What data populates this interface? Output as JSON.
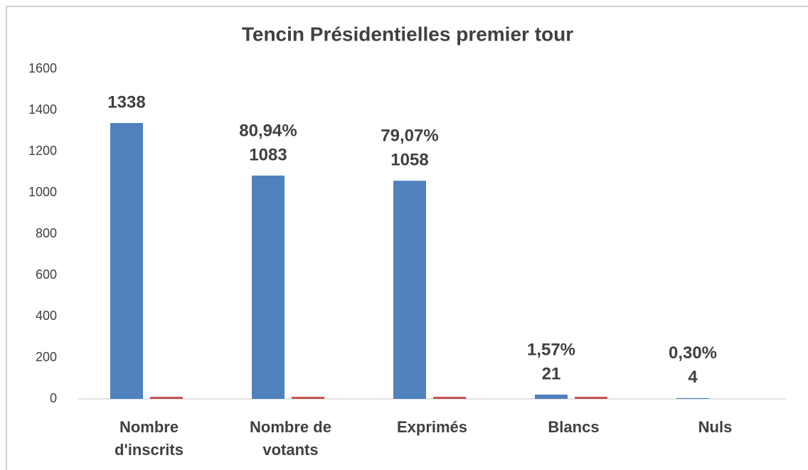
{
  "chart_data": {
    "type": "bar",
    "title": "Tencin Présidentielles premier tour",
    "categories": [
      "Nombre d'inscrits",
      "Nombre de votants",
      "Exprimés",
      "Blancs",
      "Nuls"
    ],
    "series": [
      {
        "color": "#4f81bd",
        "values": [
          1338,
          1083,
          1058,
          21,
          4
        ]
      },
      {
        "color": "#c0504d",
        "values": [
          10,
          10,
          10,
          10,
          null
        ]
      }
    ],
    "annotations": [
      {
        "category": "Nombre de votants",
        "text": "80,94%"
      },
      {
        "category": "Exprimés",
        "text": "79,07%"
      },
      {
        "category": "Blancs",
        "text": "1,57%"
      },
      {
        "category": "Nuls",
        "text": "0,30%"
      }
    ],
    "ylim": [
      0,
      1600
    ],
    "yticks": [
      0,
      200,
      400,
      600,
      800,
      1000,
      1200,
      1400,
      1600
    ],
    "grid": false
  }
}
